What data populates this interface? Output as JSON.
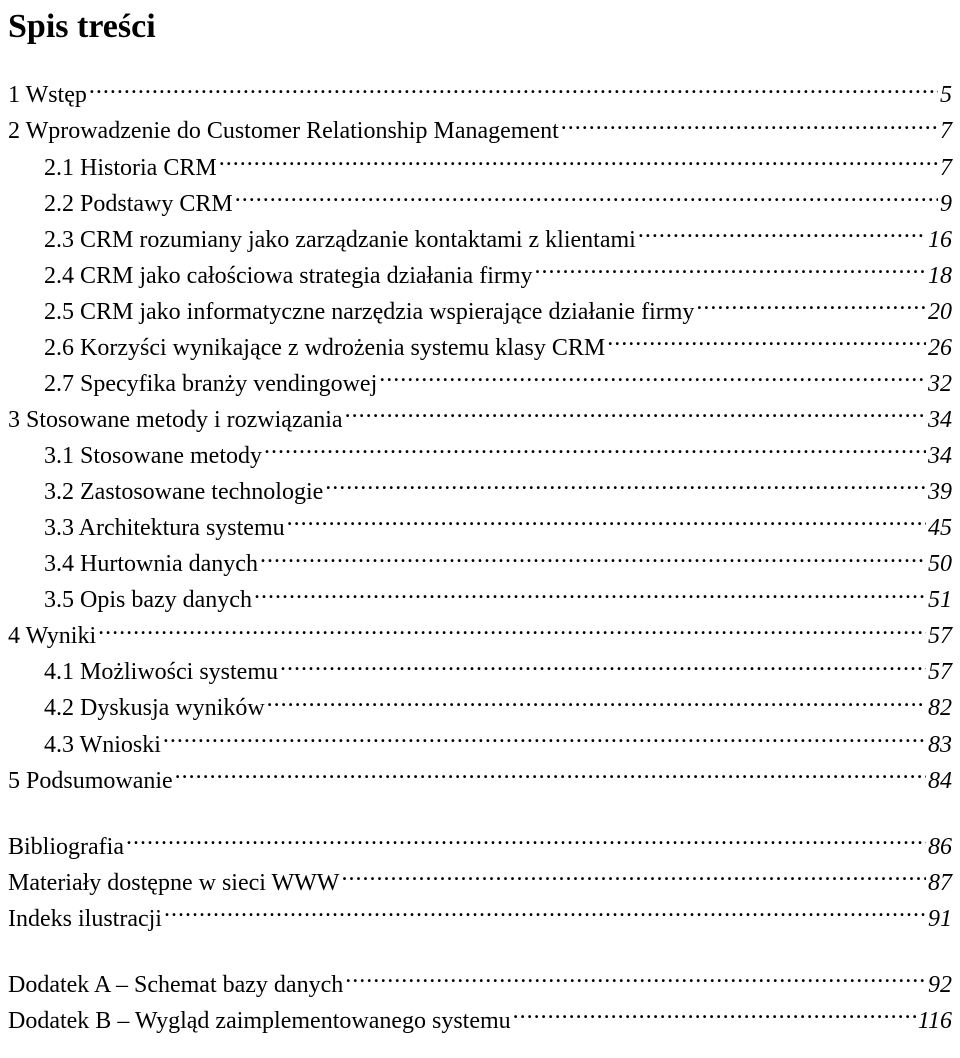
{
  "title": "Spis treści",
  "entries": [
    {
      "label": "1 Wstęp",
      "page": "5",
      "indent": 0,
      "blankAfter": false
    },
    {
      "label": "2 Wprowadzenie do Customer Relationship Management",
      "page": "7",
      "indent": 0,
      "blankAfter": false
    },
    {
      "label": "2.1 Historia CRM",
      "page": "7",
      "indent": 1,
      "blankAfter": false
    },
    {
      "label": "2.2 Podstawy CRM",
      "page": "9",
      "indent": 1,
      "blankAfter": false
    },
    {
      "label": "2.3 CRM rozumiany jako zarządzanie kontaktami z klientami",
      "page": "16",
      "indent": 1,
      "blankAfter": false
    },
    {
      "label": "2.4 CRM jako całościowa strategia działania firmy",
      "page": "18",
      "indent": 1,
      "blankAfter": false
    },
    {
      "label": "2.5 CRM jako informatyczne narzędzia wspierające działanie firmy",
      "page": "20",
      "indent": 1,
      "blankAfter": false
    },
    {
      "label": "2.6 Korzyści wynikające z wdrożenia systemu klasy CRM",
      "page": "26",
      "indent": 1,
      "blankAfter": false
    },
    {
      "label": "2.7 Specyfika branży vendingowej",
      "page": "32",
      "indent": 1,
      "blankAfter": false
    },
    {
      "label": "3 Stosowane metody i rozwiązania",
      "page": "34",
      "indent": 0,
      "blankAfter": false
    },
    {
      "label": "3.1 Stosowane metody",
      "page": "34",
      "indent": 1,
      "blankAfter": false
    },
    {
      "label": "3.2 Zastosowane technologie",
      "page": "39",
      "indent": 1,
      "blankAfter": false
    },
    {
      "label": "3.3 Architektura systemu",
      "page": "45",
      "indent": 1,
      "blankAfter": false
    },
    {
      "label": "3.4 Hurtownia danych",
      "page": "50",
      "indent": 1,
      "blankAfter": false
    },
    {
      "label": "3.5 Opis bazy danych",
      "page": "51",
      "indent": 1,
      "blankAfter": false
    },
    {
      "label": "4 Wyniki",
      "page": "57",
      "indent": 0,
      "blankAfter": false
    },
    {
      "label": "4.1 Możliwości systemu",
      "page": "57",
      "indent": 1,
      "blankAfter": false
    },
    {
      "label": "4.2 Dyskusja wyników",
      "page": "82",
      "indent": 1,
      "blankAfter": false
    },
    {
      "label": "4.3 Wnioski",
      "page": "83",
      "indent": 1,
      "blankAfter": false
    },
    {
      "label": "5 Podsumowanie",
      "page": "84",
      "indent": 0,
      "blankAfter": true
    },
    {
      "label": "Bibliografia",
      "page": "86",
      "indent": 0,
      "blankAfter": false
    },
    {
      "label": "Materiały dostępne w sieci WWW",
      "page": "87",
      "indent": 0,
      "blankAfter": false
    },
    {
      "label": "Indeks ilustracji",
      "page": "91",
      "indent": 0,
      "blankAfter": true
    },
    {
      "label": "Dodatek A – Schemat bazy danych",
      "page": "92",
      "indent": 0,
      "blankAfter": false
    },
    {
      "label": "Dodatek B – Wygląd zaimplementowanego systemu",
      "page": "116",
      "indent": 0,
      "blankAfter": false
    }
  ]
}
